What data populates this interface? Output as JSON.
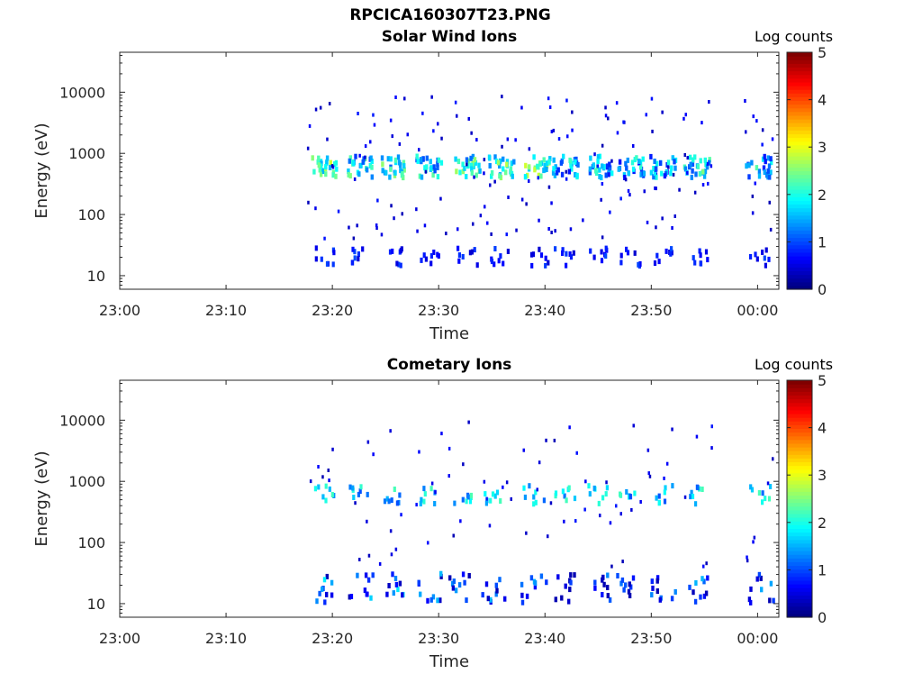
{
  "figure": {
    "title": "RPCICA160307T23.PNG"
  },
  "colorbar": {
    "label": "Log counts",
    "ticks": [
      "0",
      "1",
      "2",
      "3",
      "4",
      "5"
    ],
    "range": [
      0,
      5
    ],
    "colormap": "jet"
  },
  "chart_data": [
    {
      "type": "heatmap",
      "title": "Solar Wind Ions",
      "xlabel": "Time",
      "ylabel": "Energy (eV)",
      "x_ticks": [
        "23:00",
        "23:10",
        "23:20",
        "23:30",
        "23:40",
        "23:50",
        "00:00"
      ],
      "x_range_minutes": [
        0,
        62
      ],
      "y_scale": "log",
      "y_ticks": [
        "10",
        "100",
        "1000",
        "10000"
      ],
      "y_range_eV": [
        6,
        45000
      ],
      "color_label": "Log counts",
      "color_range": [
        0,
        5
      ],
      "bursts": [
        {
          "t": 19.2,
          "energy_eV": 600,
          "log_counts": 3.0
        },
        {
          "t": 22.5,
          "energy_eV": 600,
          "log_counts": 2.5
        },
        {
          "t": 25.5,
          "energy_eV": 600,
          "log_counts": 2.6
        },
        {
          "t": 29.0,
          "energy_eV": 600,
          "log_counts": 2.4
        },
        {
          "t": 32.6,
          "energy_eV": 600,
          "log_counts": 2.7
        },
        {
          "t": 35.8,
          "energy_eV": 600,
          "log_counts": 2.8
        },
        {
          "t": 39.2,
          "energy_eV": 600,
          "log_counts": 2.9
        },
        {
          "t": 41.8,
          "energy_eV": 600,
          "log_counts": 2.2
        },
        {
          "t": 45.0,
          "energy_eV": 600,
          "log_counts": 2.3
        },
        {
          "t": 48.0,
          "energy_eV": 600,
          "log_counts": 2.2
        },
        {
          "t": 51.0,
          "energy_eV": 600,
          "log_counts": 2.1
        },
        {
          "t": 54.2,
          "energy_eV": 600,
          "log_counts": 2.6
        },
        {
          "t": 60.0,
          "energy_eV": 600,
          "log_counts": 2.3
        }
      ]
    },
    {
      "type": "heatmap",
      "title": "Cometary Ions",
      "xlabel": "Time",
      "ylabel": "Energy (eV)",
      "x_ticks": [
        "23:00",
        "23:10",
        "23:20",
        "23:30",
        "23:40",
        "23:50",
        "00:00"
      ],
      "x_range_minutes": [
        0,
        62
      ],
      "y_scale": "log",
      "y_ticks": [
        "10",
        "100",
        "1000",
        "10000"
      ],
      "y_range_eV": [
        6,
        45000
      ],
      "color_label": "Log counts",
      "color_range": [
        0,
        5
      ],
      "bursts": [
        {
          "t": 19.2,
          "energy_eV": 18,
          "log_counts": 1.8
        },
        {
          "t": 22.5,
          "energy_eV": 18,
          "log_counts": 1.7
        },
        {
          "t": 25.5,
          "energy_eV": 18,
          "log_counts": 1.9
        },
        {
          "t": 29.0,
          "energy_eV": 18,
          "log_counts": 1.6
        },
        {
          "t": 32.0,
          "energy_eV": 18,
          "log_counts": 1.6
        },
        {
          "t": 35.2,
          "energy_eV": 18,
          "log_counts": 1.7
        },
        {
          "t": 38.8,
          "energy_eV": 18,
          "log_counts": 1.6
        },
        {
          "t": 41.8,
          "energy_eV": 18,
          "log_counts": 1.2
        },
        {
          "t": 44.8,
          "energy_eV": 18,
          "log_counts": 1.3
        },
        {
          "t": 47.8,
          "energy_eV": 18,
          "log_counts": 1.2
        },
        {
          "t": 51.0,
          "energy_eV": 18,
          "log_counts": 1.4
        },
        {
          "t": 54.2,
          "energy_eV": 18,
          "log_counts": 1.8
        },
        {
          "t": 60.2,
          "energy_eV": 18,
          "log_counts": 1.5
        }
      ]
    }
  ]
}
